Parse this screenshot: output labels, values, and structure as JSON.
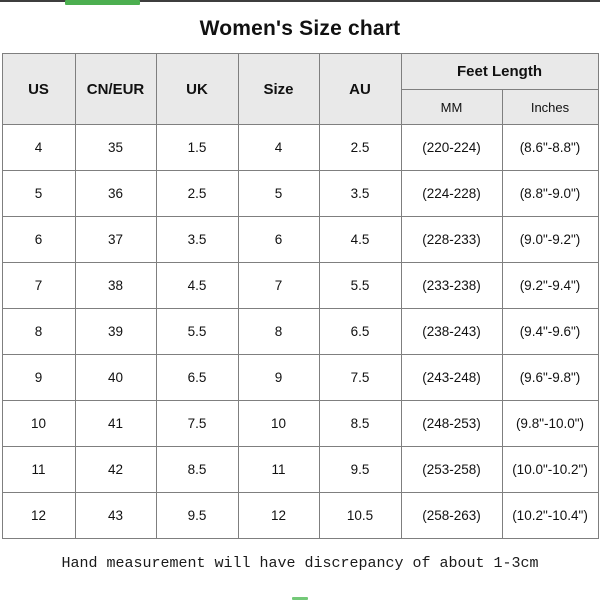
{
  "page": {
    "title": "Women's Size chart",
    "footer_note": "Hand measurement will have discrepancy of about 1-3cm"
  },
  "accents": {
    "top_line_color": "#3d3d3d",
    "top_green_bar_color": "#4caf50",
    "bottom_green_dash_color": "#5bbf60"
  },
  "table": {
    "headers": {
      "us": "US",
      "cn_eur": "CN/EUR",
      "uk": "UK",
      "size": "Size",
      "au": "AU",
      "feet_length": "Feet Length",
      "mm": "MM",
      "inches": "Inches"
    },
    "rows": [
      [
        "4",
        "35",
        "1.5",
        "4",
        "2.5",
        "(220-224)",
        "(8.6\"-8.8\")"
      ],
      [
        "5",
        "36",
        "2.5",
        "5",
        "3.5",
        "(224-228)",
        "(8.8\"-9.0\")"
      ],
      [
        "6",
        "37",
        "3.5",
        "6",
        "4.5",
        "(228-233)",
        "(9.0\"-9.2\")"
      ],
      [
        "7",
        "38",
        "4.5",
        "7",
        "5.5",
        "(233-238)",
        "(9.2\"-9.4\")"
      ],
      [
        "8",
        "39",
        "5.5",
        "8",
        "6.5",
        "(238-243)",
        "(9.4\"-9.6\")"
      ],
      [
        "9",
        "40",
        "6.5",
        "9",
        "7.5",
        "(243-248)",
        "(9.6\"-9.8\")"
      ],
      [
        "10",
        "41",
        "7.5",
        "10",
        "8.5",
        "(248-253)",
        "(9.8\"-10.0\")"
      ],
      [
        "11",
        "42",
        "8.5",
        "11",
        "9.5",
        "(253-258)",
        "(10.0\"-10.2\")"
      ],
      [
        "12",
        "43",
        "9.5",
        "12",
        "10.5",
        "(258-263)",
        "(10.2\"-10.4\")"
      ]
    ]
  }
}
